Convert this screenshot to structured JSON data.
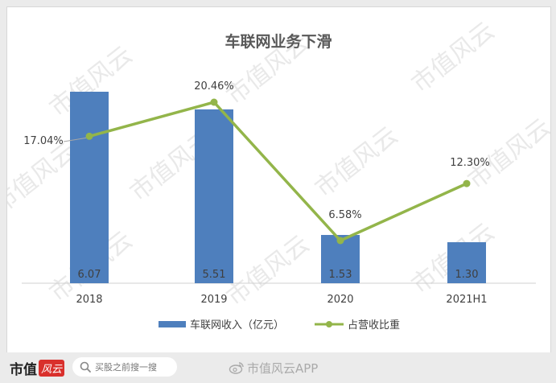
{
  "chart_data": {
    "type": "bar+line",
    "title": "车联网业务下滑",
    "categories": [
      "2018",
      "2019",
      "2020",
      "2021H1"
    ],
    "bar_series": {
      "name": "车联网收入（亿元）",
      "values": [
        6.07,
        5.51,
        1.53,
        1.3
      ],
      "labels": [
        "6.07",
        "5.51",
        "1.53",
        "1.30"
      ],
      "color": "#4e7fbd"
    },
    "line_series": {
      "name": "占营收比重",
      "values": [
        17.04,
        20.46,
        6.58,
        12.3
      ],
      "labels": [
        "17.04%",
        "20.46%",
        "6.58%",
        "12.30%"
      ],
      "color": "#93b54a"
    },
    "legend_position": "bottom",
    "gridlines": false
  },
  "watermark": "市值风云",
  "footer": {
    "logo_text": "市值",
    "logo_mark": "风云",
    "search_placeholder": "买股之前搜一搜",
    "brand": "市值风云APP"
  }
}
